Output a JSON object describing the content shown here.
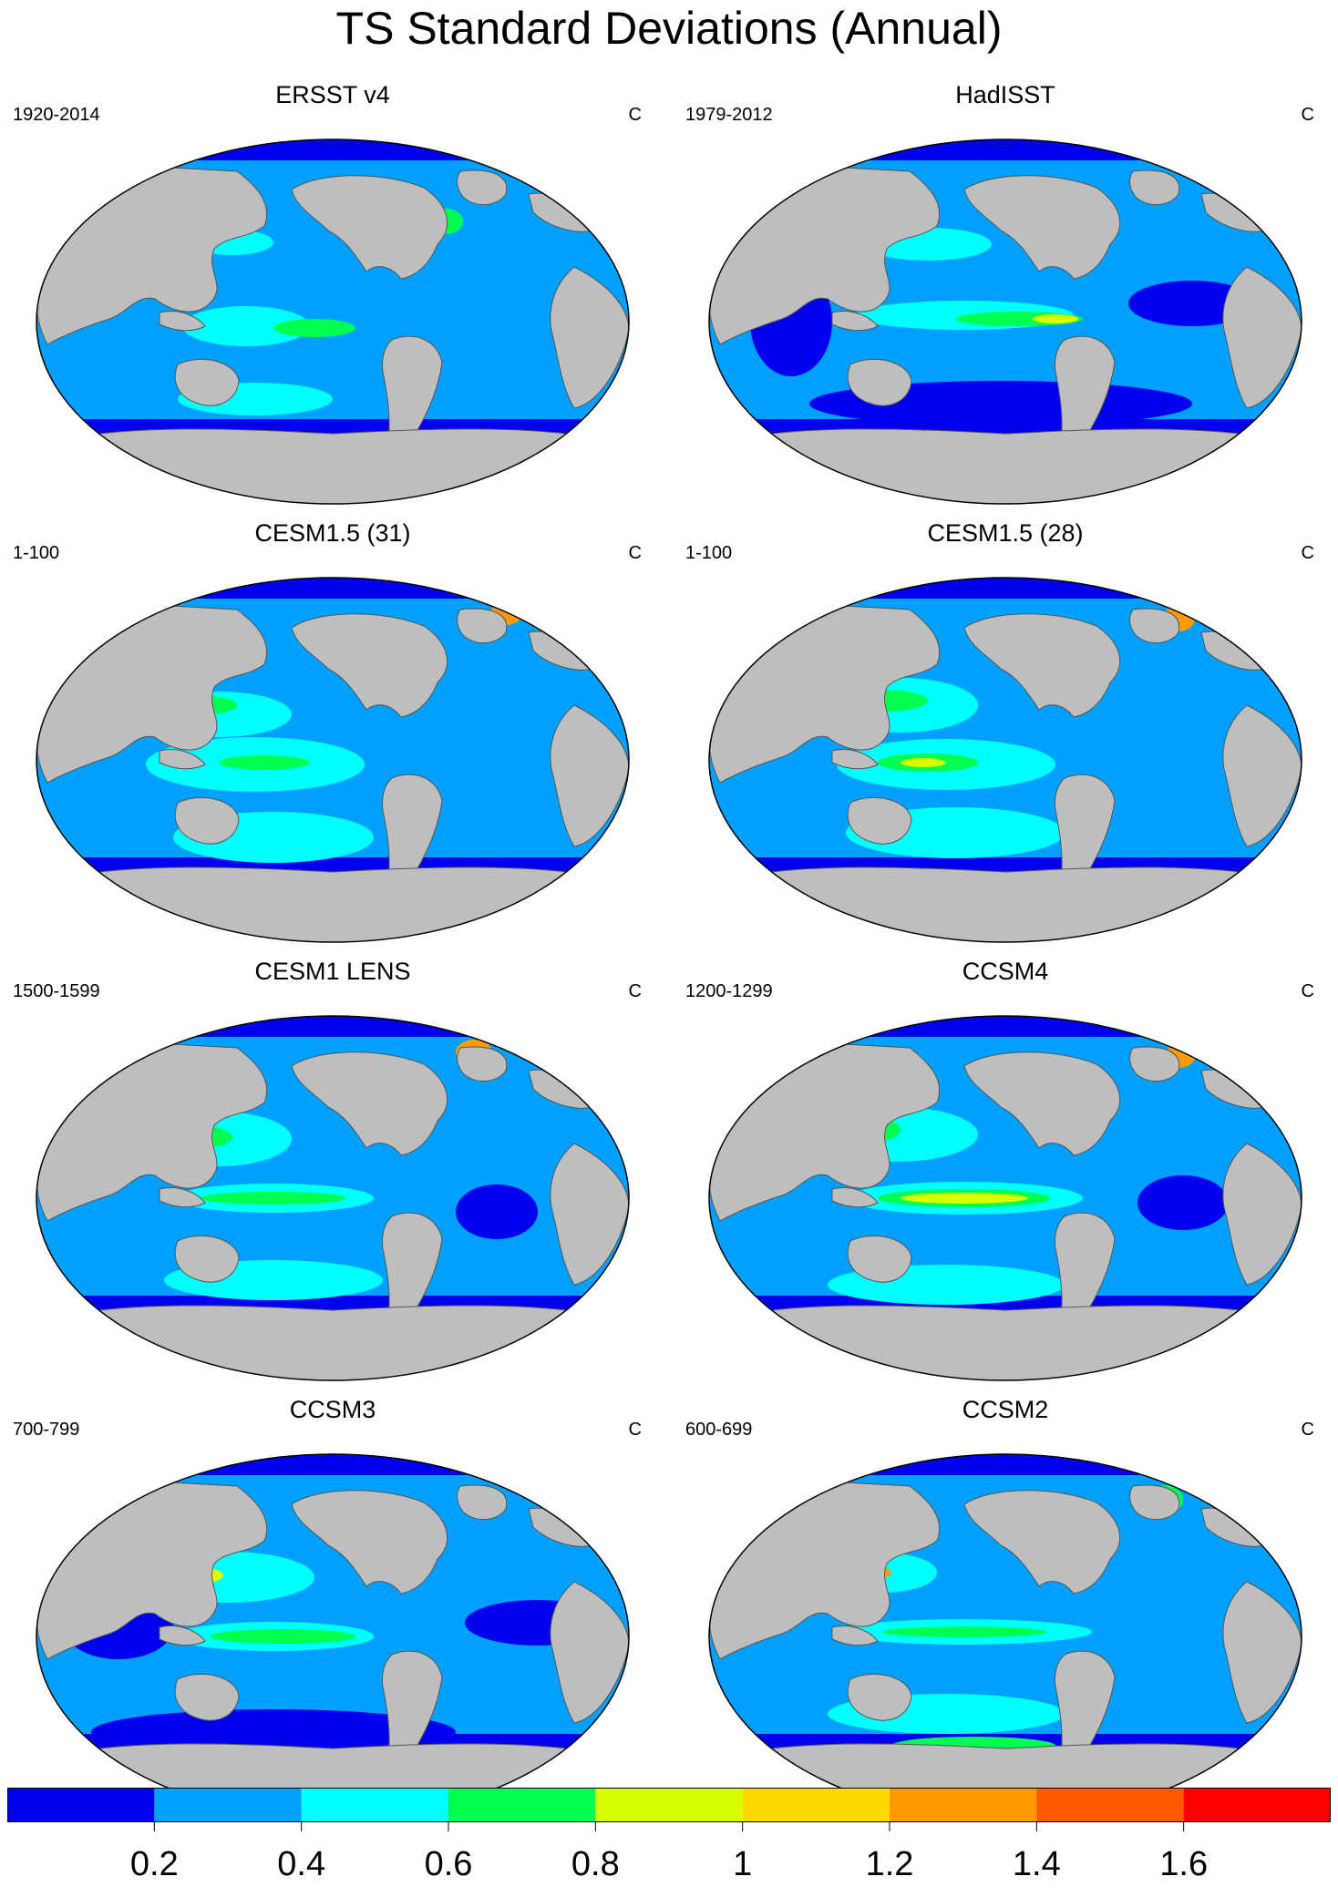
{
  "title": "TS Standard Deviations (Annual)",
  "units": "C",
  "panels": [
    {
      "name": "ERSST v4",
      "years": "1920-2014",
      "variant": "obs1"
    },
    {
      "name": "HadISST",
      "years": "1979-2012",
      "variant": "obs2"
    },
    {
      "name": "CESM1.5 (31)",
      "years": "1-100",
      "variant": "m1"
    },
    {
      "name": "CESM1.5 (28)",
      "years": "1-100",
      "variant": "m2"
    },
    {
      "name": "CESM1 LENS",
      "years": "1500-1599",
      "variant": "m3"
    },
    {
      "name": "CCSM4",
      "years": "1200-1299",
      "variant": "m4"
    },
    {
      "name": "CCSM3",
      "years": "700-799",
      "variant": "m5"
    },
    {
      "name": "CCSM2",
      "years": "600-699",
      "variant": "m6"
    }
  ],
  "colorbar": {
    "labels": [
      "0.2",
      "0.4",
      "0.6",
      "0.8",
      "1",
      "1.2",
      "1.4",
      "1.6"
    ],
    "colors": [
      "#0000ee",
      "#00a0ff",
      "#00ffff",
      "#00ff50",
      "#d8ff00",
      "#ffd800",
      "#ff9a00",
      "#ff5a00",
      "#ff0000"
    ]
  },
  "colors": {
    "land": "#bebebe",
    "deep_blue": "#0000ee",
    "blue": "#00a0ff",
    "cyan": "#00ffff",
    "green": "#00ff50",
    "yellow": "#d8ff00",
    "orange": "#ff9a00",
    "red": "#ff0000"
  }
}
